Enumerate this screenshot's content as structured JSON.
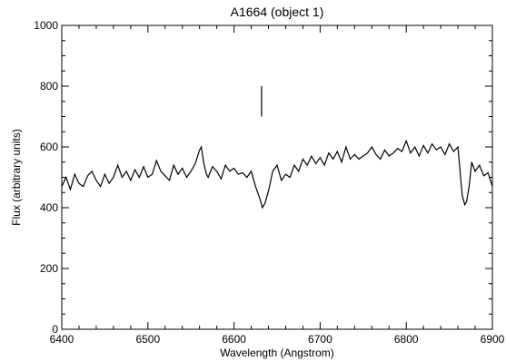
{
  "chart_data": {
    "type": "line",
    "title": "A1664 (object 1)",
    "xlabel": "Wavelength (Angstrom)",
    "ylabel": "Flux (arbitrary units)",
    "xlim": [
      6400,
      6900
    ],
    "ylim": [
      0,
      1000
    ],
    "x_ticks": [
      6400,
      6500,
      6600,
      6700,
      6800,
      6900
    ],
    "y_ticks": [
      0,
      200,
      400,
      600,
      800,
      1000
    ],
    "grid": false,
    "legend": "none",
    "line_color": "#000000",
    "marker_line": {
      "x": 6632,
      "y_from": 700,
      "y_to": 800
    },
    "series": [
      {
        "x": [
          6400,
          6405,
          6410,
          6415,
          6420,
          6425,
          6430,
          6435,
          6440,
          6445,
          6450,
          6455,
          6460,
          6465,
          6470,
          6475,
          6480,
          6485,
          6490,
          6495,
          6500,
          6505,
          6510,
          6515,
          6520,
          6525,
          6530,
          6535,
          6540,
          6545,
          6550,
          6555,
          6560,
          6562,
          6565,
          6568,
          6570,
          6575,
          6580,
          6585,
          6590,
          6595,
          6600,
          6605,
          6610,
          6615,
          6620,
          6625,
          6630,
          6633,
          6636,
          6640,
          6645,
          6650,
          6655,
          6660,
          6665,
          6670,
          6675,
          6680,
          6685,
          6690,
          6695,
          6700,
          6705,
          6710,
          6715,
          6720,
          6725,
          6730,
          6735,
          6740,
          6745,
          6750,
          6755,
          6760,
          6765,
          6770,
          6775,
          6780,
          6785,
          6790,
          6795,
          6800,
          6805,
          6810,
          6815,
          6820,
          6825,
          6830,
          6835,
          6840,
          6845,
          6850,
          6855,
          6860,
          6865,
          6868,
          6870,
          6873,
          6876,
          6880,
          6885,
          6890,
          6895,
          6900
        ],
        "y": [
          470,
          500,
          460,
          510,
          480,
          470,
          505,
          520,
          490,
          470,
          510,
          480,
          500,
          540,
          500,
          520,
          490,
          525,
          500,
          535,
          500,
          510,
          555,
          520,
          505,
          490,
          540,
          510,
          530,
          500,
          520,
          545,
          590,
          600,
          545,
          510,
          500,
          535,
          520,
          495,
          540,
          520,
          530,
          510,
          515,
          500,
          520,
          470,
          430,
          400,
          415,
          455,
          520,
          540,
          490,
          510,
          500,
          540,
          520,
          560,
          540,
          570,
          545,
          565,
          540,
          580,
          560,
          585,
          550,
          600,
          560,
          575,
          560,
          570,
          580,
          600,
          575,
          560,
          590,
          570,
          580,
          595,
          585,
          620,
          580,
          600,
          570,
          605,
          580,
          610,
          590,
          600,
          575,
          610,
          585,
          600,
          440,
          410,
          420,
          470,
          550,
          520,
          540,
          505,
          515,
          470
        ]
      }
    ]
  }
}
